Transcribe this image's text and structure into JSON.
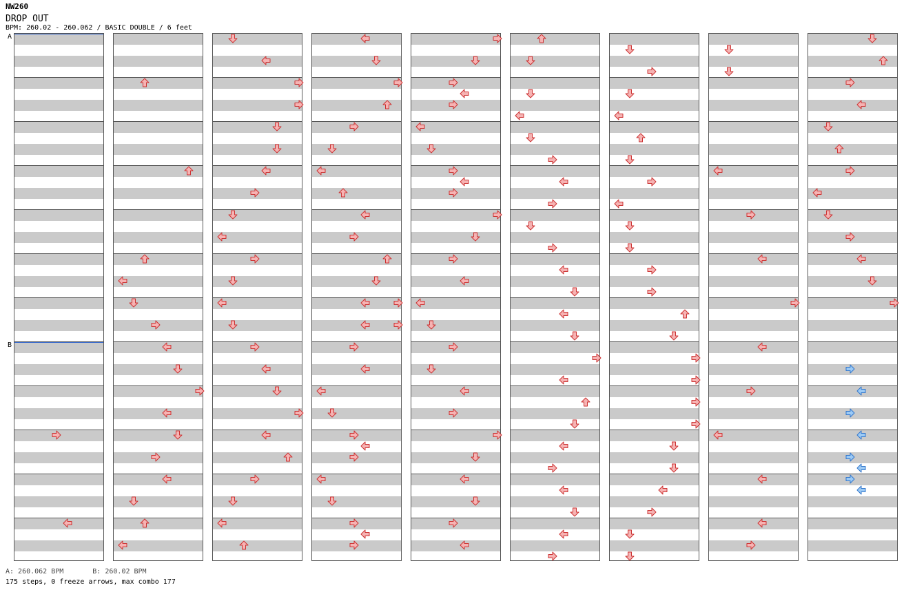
{
  "header": {
    "id": "NW260",
    "title": "DROP OUT",
    "meta": "BPM: 260.02 - 260.062 / BASIC DOUBLE / 6 feet"
  },
  "markers": [
    {
      "label": "A",
      "col": 0,
      "row": 0
    },
    {
      "label": "B",
      "col": 0,
      "row": 28
    }
  ],
  "footer": {
    "bpm_a": "A: 260.062 BPM",
    "bpm_b": "B: 260.02 BPM",
    "stats": "175 steps, 0 freeze arrows, max combo 177"
  },
  "colors": {
    "step": "#f6b3b3",
    "step_stroke": "#cc3333",
    "jump_alt": "#9ccaf5",
    "alt_stroke": "#3377cc"
  },
  "chart_data": {
    "type": "table",
    "columns_count": 9,
    "rows_per_column": 48,
    "lanes": [
      "left",
      "down",
      "up",
      "right",
      "left",
      "down",
      "up",
      "right"
    ],
    "notes": [
      {
        "col": 0,
        "row": 36,
        "lane": 3
      },
      {
        "col": 0,
        "row": 44,
        "lane": 4
      },
      {
        "col": 1,
        "row": 4,
        "lane": 2
      },
      {
        "col": 1,
        "row": 12,
        "lane": 6
      },
      {
        "col": 1,
        "row": 20,
        "lane": 2
      },
      {
        "col": 1,
        "row": 22,
        "lane": 0
      },
      {
        "col": 1,
        "row": 24,
        "lane": 1
      },
      {
        "col": 1,
        "row": 26,
        "lane": 3
      },
      {
        "col": 1,
        "row": 28,
        "lane": 4
      },
      {
        "col": 1,
        "row": 30,
        "lane": 5
      },
      {
        "col": 1,
        "row": 32,
        "lane": 7
      },
      {
        "col": 1,
        "row": 34,
        "lane": 4
      },
      {
        "col": 1,
        "row": 36,
        "lane": 5
      },
      {
        "col": 1,
        "row": 38,
        "lane": 3
      },
      {
        "col": 1,
        "row": 40,
        "lane": 4
      },
      {
        "col": 1,
        "row": 42,
        "lane": 1
      },
      {
        "col": 1,
        "row": 44,
        "lane": 2
      },
      {
        "col": 1,
        "row": 46,
        "lane": 0
      },
      {
        "col": 2,
        "row": 0,
        "lane": 1
      },
      {
        "col": 2,
        "row": 2,
        "lane": 4
      },
      {
        "col": 2,
        "row": 4,
        "lane": 7
      },
      {
        "col": 2,
        "row": 6,
        "lane": 7
      },
      {
        "col": 2,
        "row": 8,
        "lane": 5
      },
      {
        "col": 2,
        "row": 10,
        "lane": 5
      },
      {
        "col": 2,
        "row": 12,
        "lane": 4
      },
      {
        "col": 2,
        "row": 14,
        "lane": 3
      },
      {
        "col": 2,
        "row": 16,
        "lane": 1
      },
      {
        "col": 2,
        "row": 18,
        "lane": 0
      },
      {
        "col": 2,
        "row": 20,
        "lane": 3
      },
      {
        "col": 2,
        "row": 22,
        "lane": 1
      },
      {
        "col": 2,
        "row": 24,
        "lane": 0
      },
      {
        "col": 2,
        "row": 26,
        "lane": 1
      },
      {
        "col": 2,
        "row": 28,
        "lane": 3
      },
      {
        "col": 2,
        "row": 30,
        "lane": 4
      },
      {
        "col": 2,
        "row": 32,
        "lane": 5
      },
      {
        "col": 2,
        "row": 34,
        "lane": 7
      },
      {
        "col": 2,
        "row": 36,
        "lane": 4
      },
      {
        "col": 2,
        "row": 38,
        "lane": 6
      },
      {
        "col": 2,
        "row": 40,
        "lane": 3
      },
      {
        "col": 2,
        "row": 42,
        "lane": 1
      },
      {
        "col": 2,
        "row": 44,
        "lane": 0
      },
      {
        "col": 2,
        "row": 46,
        "lane": 2
      },
      {
        "col": 3,
        "row": 0,
        "lane": 4
      },
      {
        "col": 3,
        "row": 2,
        "lane": 5
      },
      {
        "col": 3,
        "row": 4,
        "lane": 7
      },
      {
        "col": 3,
        "row": 6,
        "lane": 6
      },
      {
        "col": 3,
        "row": 8,
        "lane": 3
      },
      {
        "col": 3,
        "row": 10,
        "lane": 1
      },
      {
        "col": 3,
        "row": 12,
        "lane": 0
      },
      {
        "col": 3,
        "row": 14,
        "lane": 2
      },
      {
        "col": 3,
        "row": 16,
        "lane": 4
      },
      {
        "col": 3,
        "row": 18,
        "lane": 3
      },
      {
        "col": 3,
        "row": 20,
        "lane": 6
      },
      {
        "col": 3,
        "row": 22,
        "lane": 5
      },
      {
        "col": 3,
        "row": 24,
        "lane": 4
      },
      {
        "col": 3,
        "row": 24,
        "lane": 7
      },
      {
        "col": 3,
        "row": 26,
        "lane": 4
      },
      {
        "col": 3,
        "row": 26,
        "lane": 7
      },
      {
        "col": 3,
        "row": 28,
        "lane": 3
      },
      {
        "col": 3,
        "row": 30,
        "lane": 4
      },
      {
        "col": 3,
        "row": 32,
        "lane": 0
      },
      {
        "col": 3,
        "row": 34,
        "lane": 1
      },
      {
        "col": 3,
        "row": 36,
        "lane": 3
      },
      {
        "col": 3,
        "row": 37,
        "lane": 4
      },
      {
        "col": 3,
        "row": 38,
        "lane": 3
      },
      {
        "col": 3,
        "row": 40,
        "lane": 0
      },
      {
        "col": 3,
        "row": 42,
        "lane": 1
      },
      {
        "col": 3,
        "row": 44,
        "lane": 3
      },
      {
        "col": 3,
        "row": 45,
        "lane": 4
      },
      {
        "col": 3,
        "row": 46,
        "lane": 3
      },
      {
        "col": 4,
        "row": 0,
        "lane": 7
      },
      {
        "col": 4,
        "row": 2,
        "lane": 5
      },
      {
        "col": 4,
        "row": 4,
        "lane": 3
      },
      {
        "col": 4,
        "row": 5,
        "lane": 4
      },
      {
        "col": 4,
        "row": 6,
        "lane": 3
      },
      {
        "col": 4,
        "row": 8,
        "lane": 0
      },
      {
        "col": 4,
        "row": 10,
        "lane": 1
      },
      {
        "col": 4,
        "row": 12,
        "lane": 3
      },
      {
        "col": 4,
        "row": 13,
        "lane": 4
      },
      {
        "col": 4,
        "row": 14,
        "lane": 3
      },
      {
        "col": 4,
        "row": 16,
        "lane": 7
      },
      {
        "col": 4,
        "row": 18,
        "lane": 5
      },
      {
        "col": 4,
        "row": 20,
        "lane": 3
      },
      {
        "col": 4,
        "row": 22,
        "lane": 4
      },
      {
        "col": 4,
        "row": 24,
        "lane": 0
      },
      {
        "col": 4,
        "row": 26,
        "lane": 1
      },
      {
        "col": 4,
        "row": 28,
        "lane": 3
      },
      {
        "col": 4,
        "row": 30,
        "lane": 1
      },
      {
        "col": 4,
        "row": 32,
        "lane": 4
      },
      {
        "col": 4,
        "row": 34,
        "lane": 3
      },
      {
        "col": 4,
        "row": 36,
        "lane": 7
      },
      {
        "col": 4,
        "row": 38,
        "lane": 5
      },
      {
        "col": 4,
        "row": 40,
        "lane": 4
      },
      {
        "col": 4,
        "row": 42,
        "lane": 5
      },
      {
        "col": 4,
        "row": 44,
        "lane": 3
      },
      {
        "col": 4,
        "row": 46,
        "lane": 4
      },
      {
        "col": 5,
        "row": 0,
        "lane": 2
      },
      {
        "col": 5,
        "row": 2,
        "lane": 1
      },
      {
        "col": 5,
        "row": 5,
        "lane": 1
      },
      {
        "col": 5,
        "row": 7,
        "lane": 0
      },
      {
        "col": 5,
        "row": 9,
        "lane": 1
      },
      {
        "col": 5,
        "row": 11,
        "lane": 3
      },
      {
        "col": 5,
        "row": 13,
        "lane": 4
      },
      {
        "col": 5,
        "row": 15,
        "lane": 3
      },
      {
        "col": 5,
        "row": 17,
        "lane": 1
      },
      {
        "col": 5,
        "row": 19,
        "lane": 3
      },
      {
        "col": 5,
        "row": 21,
        "lane": 4
      },
      {
        "col": 5,
        "row": 23,
        "lane": 5
      },
      {
        "col": 5,
        "row": 25,
        "lane": 4
      },
      {
        "col": 5,
        "row": 27,
        "lane": 5
      },
      {
        "col": 5,
        "row": 29,
        "lane": 7
      },
      {
        "col": 5,
        "row": 31,
        "lane": 4
      },
      {
        "col": 5,
        "row": 33,
        "lane": 6
      },
      {
        "col": 5,
        "row": 35,
        "lane": 5
      },
      {
        "col": 5,
        "row": 37,
        "lane": 4
      },
      {
        "col": 5,
        "row": 39,
        "lane": 3
      },
      {
        "col": 5,
        "row": 41,
        "lane": 4
      },
      {
        "col": 5,
        "row": 43,
        "lane": 5
      },
      {
        "col": 5,
        "row": 45,
        "lane": 4
      },
      {
        "col": 5,
        "row": 47,
        "lane": 3
      },
      {
        "col": 6,
        "row": 1,
        "lane": 1
      },
      {
        "col": 6,
        "row": 3,
        "lane": 3
      },
      {
        "col": 6,
        "row": 5,
        "lane": 1
      },
      {
        "col": 6,
        "row": 7,
        "lane": 0
      },
      {
        "col": 6,
        "row": 9,
        "lane": 2
      },
      {
        "col": 6,
        "row": 11,
        "lane": 1
      },
      {
        "col": 6,
        "row": 13,
        "lane": 3
      },
      {
        "col": 6,
        "row": 15,
        "lane": 0
      },
      {
        "col": 6,
        "row": 17,
        "lane": 1
      },
      {
        "col": 6,
        "row": 19,
        "lane": 1
      },
      {
        "col": 6,
        "row": 21,
        "lane": 3
      },
      {
        "col": 6,
        "row": 23,
        "lane": 3
      },
      {
        "col": 6,
        "row": 25,
        "lane": 6
      },
      {
        "col": 6,
        "row": 27,
        "lane": 5
      },
      {
        "col": 6,
        "row": 29,
        "lane": 7
      },
      {
        "col": 6,
        "row": 31,
        "lane": 7
      },
      {
        "col": 6,
        "row": 33,
        "lane": 7
      },
      {
        "col": 6,
        "row": 35,
        "lane": 7
      },
      {
        "col": 6,
        "row": 37,
        "lane": 5
      },
      {
        "col": 6,
        "row": 39,
        "lane": 5
      },
      {
        "col": 6,
        "row": 41,
        "lane": 4
      },
      {
        "col": 6,
        "row": 43,
        "lane": 3
      },
      {
        "col": 6,
        "row": 45,
        "lane": 1
      },
      {
        "col": 6,
        "row": 47,
        "lane": 1
      },
      {
        "col": 7,
        "row": 1,
        "lane": 1
      },
      {
        "col": 7,
        "row": 3,
        "lane": 1
      },
      {
        "col": 7,
        "row": 12,
        "lane": 0
      },
      {
        "col": 7,
        "row": 16,
        "lane": 3
      },
      {
        "col": 7,
        "row": 20,
        "lane": 4
      },
      {
        "col": 7,
        "row": 24,
        "lane": 7
      },
      {
        "col": 7,
        "row": 28,
        "lane": 4
      },
      {
        "col": 7,
        "row": 32,
        "lane": 3
      },
      {
        "col": 7,
        "row": 36,
        "lane": 0
      },
      {
        "col": 7,
        "row": 40,
        "lane": 4
      },
      {
        "col": 7,
        "row": 44,
        "lane": 4
      },
      {
        "col": 7,
        "row": 46,
        "lane": 3
      },
      {
        "col": 8,
        "row": 0,
        "lane": 5
      },
      {
        "col": 8,
        "row": 2,
        "lane": 6
      },
      {
        "col": 8,
        "row": 4,
        "lane": 3
      },
      {
        "col": 8,
        "row": 6,
        "lane": 4
      },
      {
        "col": 8,
        "row": 8,
        "lane": 1
      },
      {
        "col": 8,
        "row": 10,
        "lane": 2
      },
      {
        "col": 8,
        "row": 12,
        "lane": 3
      },
      {
        "col": 8,
        "row": 14,
        "lane": 0
      },
      {
        "col": 8,
        "row": 16,
        "lane": 1
      },
      {
        "col": 8,
        "row": 18,
        "lane": 3
      },
      {
        "col": 8,
        "row": 20,
        "lane": 4
      },
      {
        "col": 8,
        "row": 22,
        "lane": 5
      },
      {
        "col": 8,
        "row": 24,
        "lane": 7
      },
      {
        "col": 8,
        "row": 30,
        "lane": 3,
        "alt": true
      },
      {
        "col": 8,
        "row": 32,
        "lane": 4,
        "alt": true
      },
      {
        "col": 8,
        "row": 34,
        "lane": 3,
        "alt": true
      },
      {
        "col": 8,
        "row": 36,
        "lane": 4,
        "alt": true
      },
      {
        "col": 8,
        "row": 38,
        "lane": 3,
        "alt": true
      },
      {
        "col": 8,
        "row": 39,
        "lane": 4,
        "alt": true
      },
      {
        "col": 8,
        "row": 40,
        "lane": 3,
        "alt": true
      },
      {
        "col": 8,
        "row": 41,
        "lane": 4,
        "alt": true
      }
    ]
  }
}
